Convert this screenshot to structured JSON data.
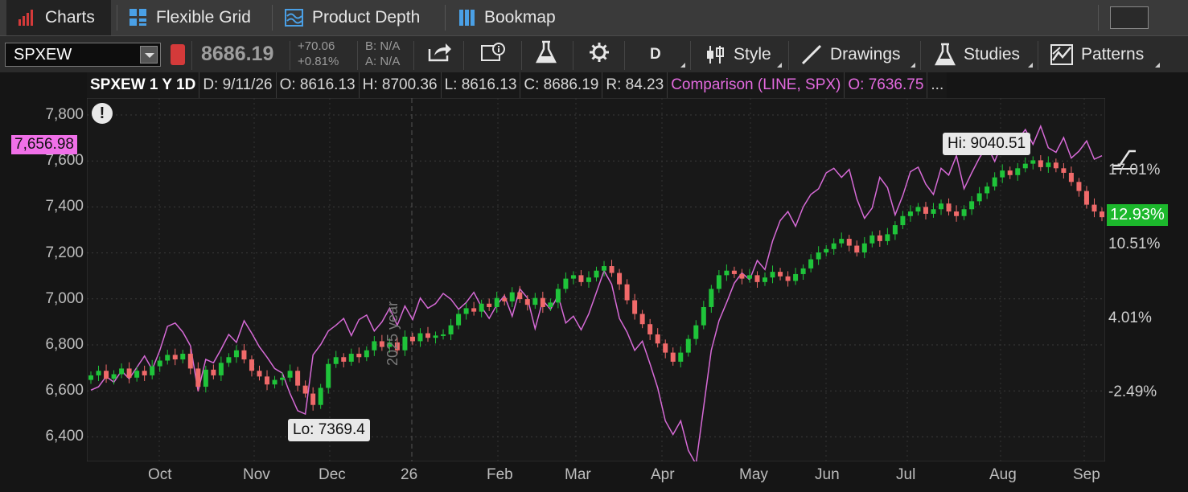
{
  "tabs": [
    {
      "label": "Charts",
      "icon": "bar-chart-icon",
      "active": true
    },
    {
      "label": "Flexible Grid",
      "icon": "grid-icon"
    },
    {
      "label": "Product Depth",
      "icon": "depth-icon"
    },
    {
      "label": "Bookmap",
      "icon": "bookmap-icon"
    }
  ],
  "toolbar": {
    "symbol": "SPXEW",
    "last_price": "8686.19",
    "change_abs": "+70.06",
    "change_pct": "+0.81%",
    "bid": "B: N/A",
    "ask": "A: N/A",
    "timeframe": "D",
    "style_label": "Style",
    "drawings_label": "Drawings",
    "studies_label": "Studies",
    "patterns_label": "Patterns"
  },
  "infobar": {
    "title": "SPXEW 1 Y 1D",
    "date": "D: 9/11/26",
    "open": "O: 8616.13",
    "high": "H: 8700.36",
    "low": "L: 8616.13",
    "close": "C: 8686.19",
    "range": "R: 84.23",
    "comparison": "Comparison (LINE, SPX)",
    "comparison_open": "O: 7636.75",
    "more": "..."
  },
  "axes": {
    "y_ticks": [
      "7,800",
      "7,600",
      "7,400",
      "7,200",
      "7,000",
      "6,800",
      "6,600",
      "6,400"
    ],
    "x_ticks": [
      "Oct",
      "Nov",
      "Dec",
      "26",
      "Feb",
      "Mar",
      "Apr",
      "May",
      "Jun",
      "Jul",
      "Aug",
      "Sep"
    ],
    "pct_ticks": [
      "17.01%",
      "10.51%",
      "4.01%",
      "-2.49%"
    ]
  },
  "annotations": {
    "comparison_price_tag": "7,656.98",
    "current_pct_tag": "12.93%",
    "high_bubble": "Hi: 9040.51",
    "low_bubble": "Lo: 7369.4",
    "year_marker": "2025 year",
    "warning_glyph": "!"
  },
  "colors": {
    "up": "#1fc43a",
    "down": "#f06a6a",
    "comparison": "#d66ad6",
    "pink_tag": "#f070e8",
    "green_tag": "#1cb82c"
  },
  "chart_data": {
    "type": "candlestick",
    "y_axis_labels_are_comparison_scale": true,
    "ylim": [
      6330,
      7950
    ],
    "pct_axis": [
      17.01,
      10.51,
      4.01,
      -2.49
    ],
    "main_series_pct": [
      -1.0,
      -0.6,
      -1.3,
      -0.9,
      -0.4,
      -1.2,
      -0.6,
      -1.0,
      -0.2,
      0.3,
      0.8,
      0.4,
      0.9,
      -0.4,
      -2.0,
      -0.5,
      -1.0,
      0.1,
      0.6,
      1.2,
      0.4,
      -0.6,
      -1.1,
      -1.8,
      -1.4,
      -1.2,
      -0.6,
      -1.9,
      -2.6,
      -3.6,
      -2.1,
      0.0,
      0.6,
      0.2,
      0.9,
      0.6,
      1.2,
      2.0,
      1.5,
      1.9,
      1.2,
      2.4,
      2.0,
      2.7,
      2.3,
      2.5,
      2.6,
      3.4,
      4.4,
      4.9,
      4.6,
      5.3,
      5.0,
      5.8,
      5.5,
      6.3,
      5.7,
      5.2,
      5.8,
      5.0,
      5.4,
      6.6,
      7.5,
      7.8,
      7.2,
      7.6,
      8.2,
      8.6,
      8.0,
      7.0,
      5.6,
      4.4,
      3.5,
      2.6,
      1.8,
      1.0,
      0.2,
      1.0,
      2.2,
      3.4,
      5.0,
      6.6,
      7.8,
      8.2,
      7.9,
      7.5,
      7.8,
      7.2,
      7.6,
      8.1,
      7.7,
      7.3,
      7.9,
      8.4,
      9.2,
      9.8,
      10.1,
      10.6,
      11.0,
      10.4,
      9.8,
      10.6,
      11.3,
      10.8,
      11.4,
      12.2,
      13.0,
      13.4,
      13.8,
      13.2,
      13.6,
      14.1,
      13.4,
      13.0,
      13.6,
      14.3,
      15.0,
      15.6,
      16.4,
      17.0,
      16.6,
      17.2,
      17.6,
      17.9,
      17.3,
      17.7,
      17.2,
      16.8,
      16.0,
      15.2,
      14.0,
      13.4,
      12.9
    ],
    "comparison_series_pct": [
      -2.3,
      -2.0,
      -1.1,
      -1.6,
      -0.6,
      -1.3,
      -0.3,
      0.7,
      -0.5,
      1.2,
      3.3,
      3.6,
      2.8,
      1.6,
      -2.4,
      0.4,
      0.1,
      1.3,
      2.6,
      1.9,
      3.8,
      2.7,
      1.5,
      0.6,
      -0.4,
      -0.8,
      -2.6,
      -4.1,
      -4.4,
      0.8,
      1.7,
      2.9,
      3.4,
      4.0,
      2.5,
      3.9,
      4.3,
      2.9,
      3.7,
      4.9,
      3.4,
      5.1,
      3.9,
      5.8,
      4.9,
      5.3,
      6.2,
      5.7,
      4.8,
      5.4,
      6.3,
      5.0,
      4.0,
      5.2,
      6.0,
      4.2,
      6.6,
      5.8,
      3.1,
      5.6,
      4.8,
      6.0,
      3.6,
      4.2,
      3.0,
      4.4,
      6.3,
      8.2,
      7.0,
      4.0,
      2.8,
      1.2,
      2.0,
      0.0,
      -2.1,
      -5.0,
      -6.2,
      -5.0,
      -7.6,
      -8.8,
      -3.8,
      1.2,
      3.8,
      5.4,
      7.1,
      8.0,
      7.4,
      9.1,
      8.3,
      10.8,
      12.6,
      13.4,
      12.1,
      13.8,
      14.9,
      15.4,
      16.8,
      17.2,
      16.4,
      17.1,
      14.5,
      12.8,
      13.7,
      16.4,
      15.5,
      13.1,
      14.8,
      16.9,
      17.3,
      15.8,
      14.9,
      17.2,
      16.6,
      18.3,
      15.4,
      16.8,
      18.1,
      19.2,
      17.8,
      19.5,
      20.1,
      19.7,
      20.6,
      19.3,
      20.9,
      19.0,
      18.6,
      19.9,
      18.1,
      18.7,
      19.6,
      18.0,
      18.3
    ]
  }
}
